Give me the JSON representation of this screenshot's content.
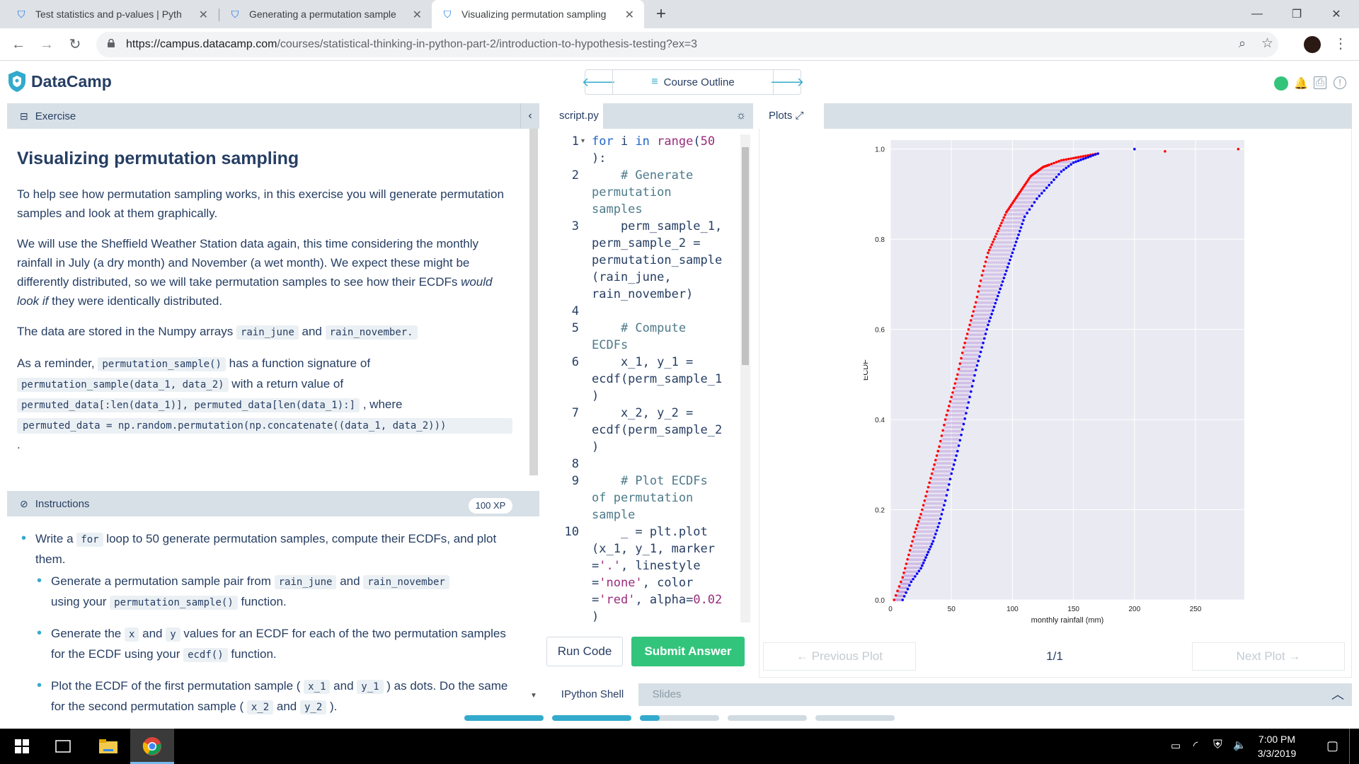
{
  "browser": {
    "tabs": [
      {
        "title": "Test statistics and p-values | Pyth",
        "active": false
      },
      {
        "title": "Generating a permutation sample",
        "active": false
      },
      {
        "title": "Visualizing permutation sampling",
        "active": true
      }
    ],
    "url_host": "https://campus.datacamp.com",
    "url_path": "/courses/statistical-thinking-in-python-part-2/introduction-to-hypothesis-testing?ex=3"
  },
  "header": {
    "brand": "DataCamp",
    "course_outline": "Course Outline"
  },
  "exercise": {
    "panel_title": "Exercise",
    "title": "Visualizing permutation sampling",
    "p1": "To help see how permutation sampling works, in this exercise you will generate permutation samples and look at them graphically.",
    "p2a": "We will use the Sheffield Weather Station data again, this time considering the monthly rainfall in July (a dry month) and November (a wet month). We expect these might be differently distributed, so we will take permutation samples to see how their ECDFs ",
    "p2_em": "would look if",
    "p2b": " they were identically distributed.",
    "p3a": "The data are stored in the Numpy arrays ",
    "p3_code1": "rain_june",
    "p3_and": " and ",
    "p3_code2": "rain_november.",
    "p4a": "As a reminder, ",
    "p4_code1": "permutation_sample()",
    "p4b": " has a function signature of",
    "p4_code2": "permutation_sample(data_1, data_2)",
    "p4c": " with a return value of",
    "p4_code3": "permuted_data[:len(data_1)], permuted_data[len(data_1):]",
    "p4d": " , where",
    "p4_code4": "permuted_data = np.random.permutation(np.concatenate((data_1, data_2)))",
    "p4_end": "."
  },
  "instructions": {
    "panel_title": "Instructions",
    "xp": "100 XP",
    "b1a": "Write a ",
    "b1_code": "for",
    "b1b": " loop to 50 generate permutation samples, compute their ECDFs, and plot them.",
    "s1a": "Generate a permutation sample pair from ",
    "s1_code1": "rain_june",
    "s1_and": " and ",
    "s1_code2": "rain_november",
    "s1b": "using your ",
    "s1_code3": "permutation_sample()",
    "s1c": " function.",
    "s2a": "Generate the ",
    "s2_code1": "x",
    "s2_and": " and ",
    "s2_code2": "y",
    "s2b": " values for an ECDF for each of the two permutation samples for the ECDF using your ",
    "s2_code3": "ecdf()",
    "s2c": " function.",
    "s3a": "Plot the ECDF of the first permutation sample ( ",
    "s3_code1": "x_1",
    "s3_and": " and ",
    "s3_code2": "y_1",
    "s3b": " ) as dots. Do the same for the second permutation sample ( ",
    "s3_code3": "x_2",
    "s3_and2": " and ",
    "s3_code4": "y_2",
    "s3c": " )."
  },
  "editor": {
    "tab": "script.py",
    "line_numbers": [
      "1",
      "2",
      "3",
      "4",
      "5",
      "6",
      "7",
      "8",
      "9",
      "10"
    ],
    "run_label": "Run Code",
    "submit_label": "Submit Answer"
  },
  "plots": {
    "tab": "Plots",
    "prev_label": "← Previous Plot",
    "next_label": "Next Plot →",
    "counter": "1/1"
  },
  "bottom_tabs": {
    "shell": "IPython Shell",
    "slides": "Slides"
  },
  "taskbar": {
    "time": "7:00 PM",
    "date": "3/3/2019"
  },
  "chart_data": {
    "type": "scatter",
    "xlabel": "monthly rainfall (mm)",
    "ylabel": "ECDF",
    "xlim": [
      0,
      290
    ],
    "ylim": [
      0,
      1.02
    ],
    "x_ticks": [
      "0",
      "50",
      "100",
      "150",
      "200",
      "250"
    ],
    "y_ticks": [
      "0.0",
      "0.2",
      "0.4",
      "0.6",
      "0.8",
      "1.0"
    ],
    "grid": true,
    "series": [
      {
        "color": "#ff0000",
        "x": [
          3,
          10,
          15,
          20,
          25,
          30,
          35,
          40,
          45,
          50,
          55,
          60,
          65,
          70,
          75,
          80,
          85,
          90,
          95,
          100,
          105,
          110,
          115,
          120,
          125,
          130,
          140,
          150,
          160,
          170,
          225,
          285
        ],
        "y": [
          0.0,
          0.05,
          0.1,
          0.15,
          0.19,
          0.24,
          0.29,
          0.34,
          0.4,
          0.45,
          0.5,
          0.56,
          0.61,
          0.66,
          0.72,
          0.77,
          0.8,
          0.83,
          0.86,
          0.88,
          0.9,
          0.92,
          0.94,
          0.95,
          0.96,
          0.965,
          0.975,
          0.98,
          0.985,
          0.99,
          0.995,
          1.0
        ]
      },
      {
        "color": "#0000ff",
        "x": [
          10,
          17,
          25,
          30,
          35,
          40,
          45,
          50,
          55,
          60,
          65,
          70,
          75,
          80,
          85,
          90,
          95,
          100,
          105,
          110,
          120,
          130,
          140,
          150,
          160,
          170,
          200
        ],
        "y": [
          0.0,
          0.04,
          0.07,
          0.1,
          0.13,
          0.17,
          0.22,
          0.28,
          0.33,
          0.39,
          0.45,
          0.51,
          0.56,
          0.61,
          0.65,
          0.69,
          0.73,
          0.77,
          0.81,
          0.85,
          0.89,
          0.92,
          0.95,
          0.97,
          0.98,
          0.99,
          1.0
        ]
      }
    ]
  }
}
